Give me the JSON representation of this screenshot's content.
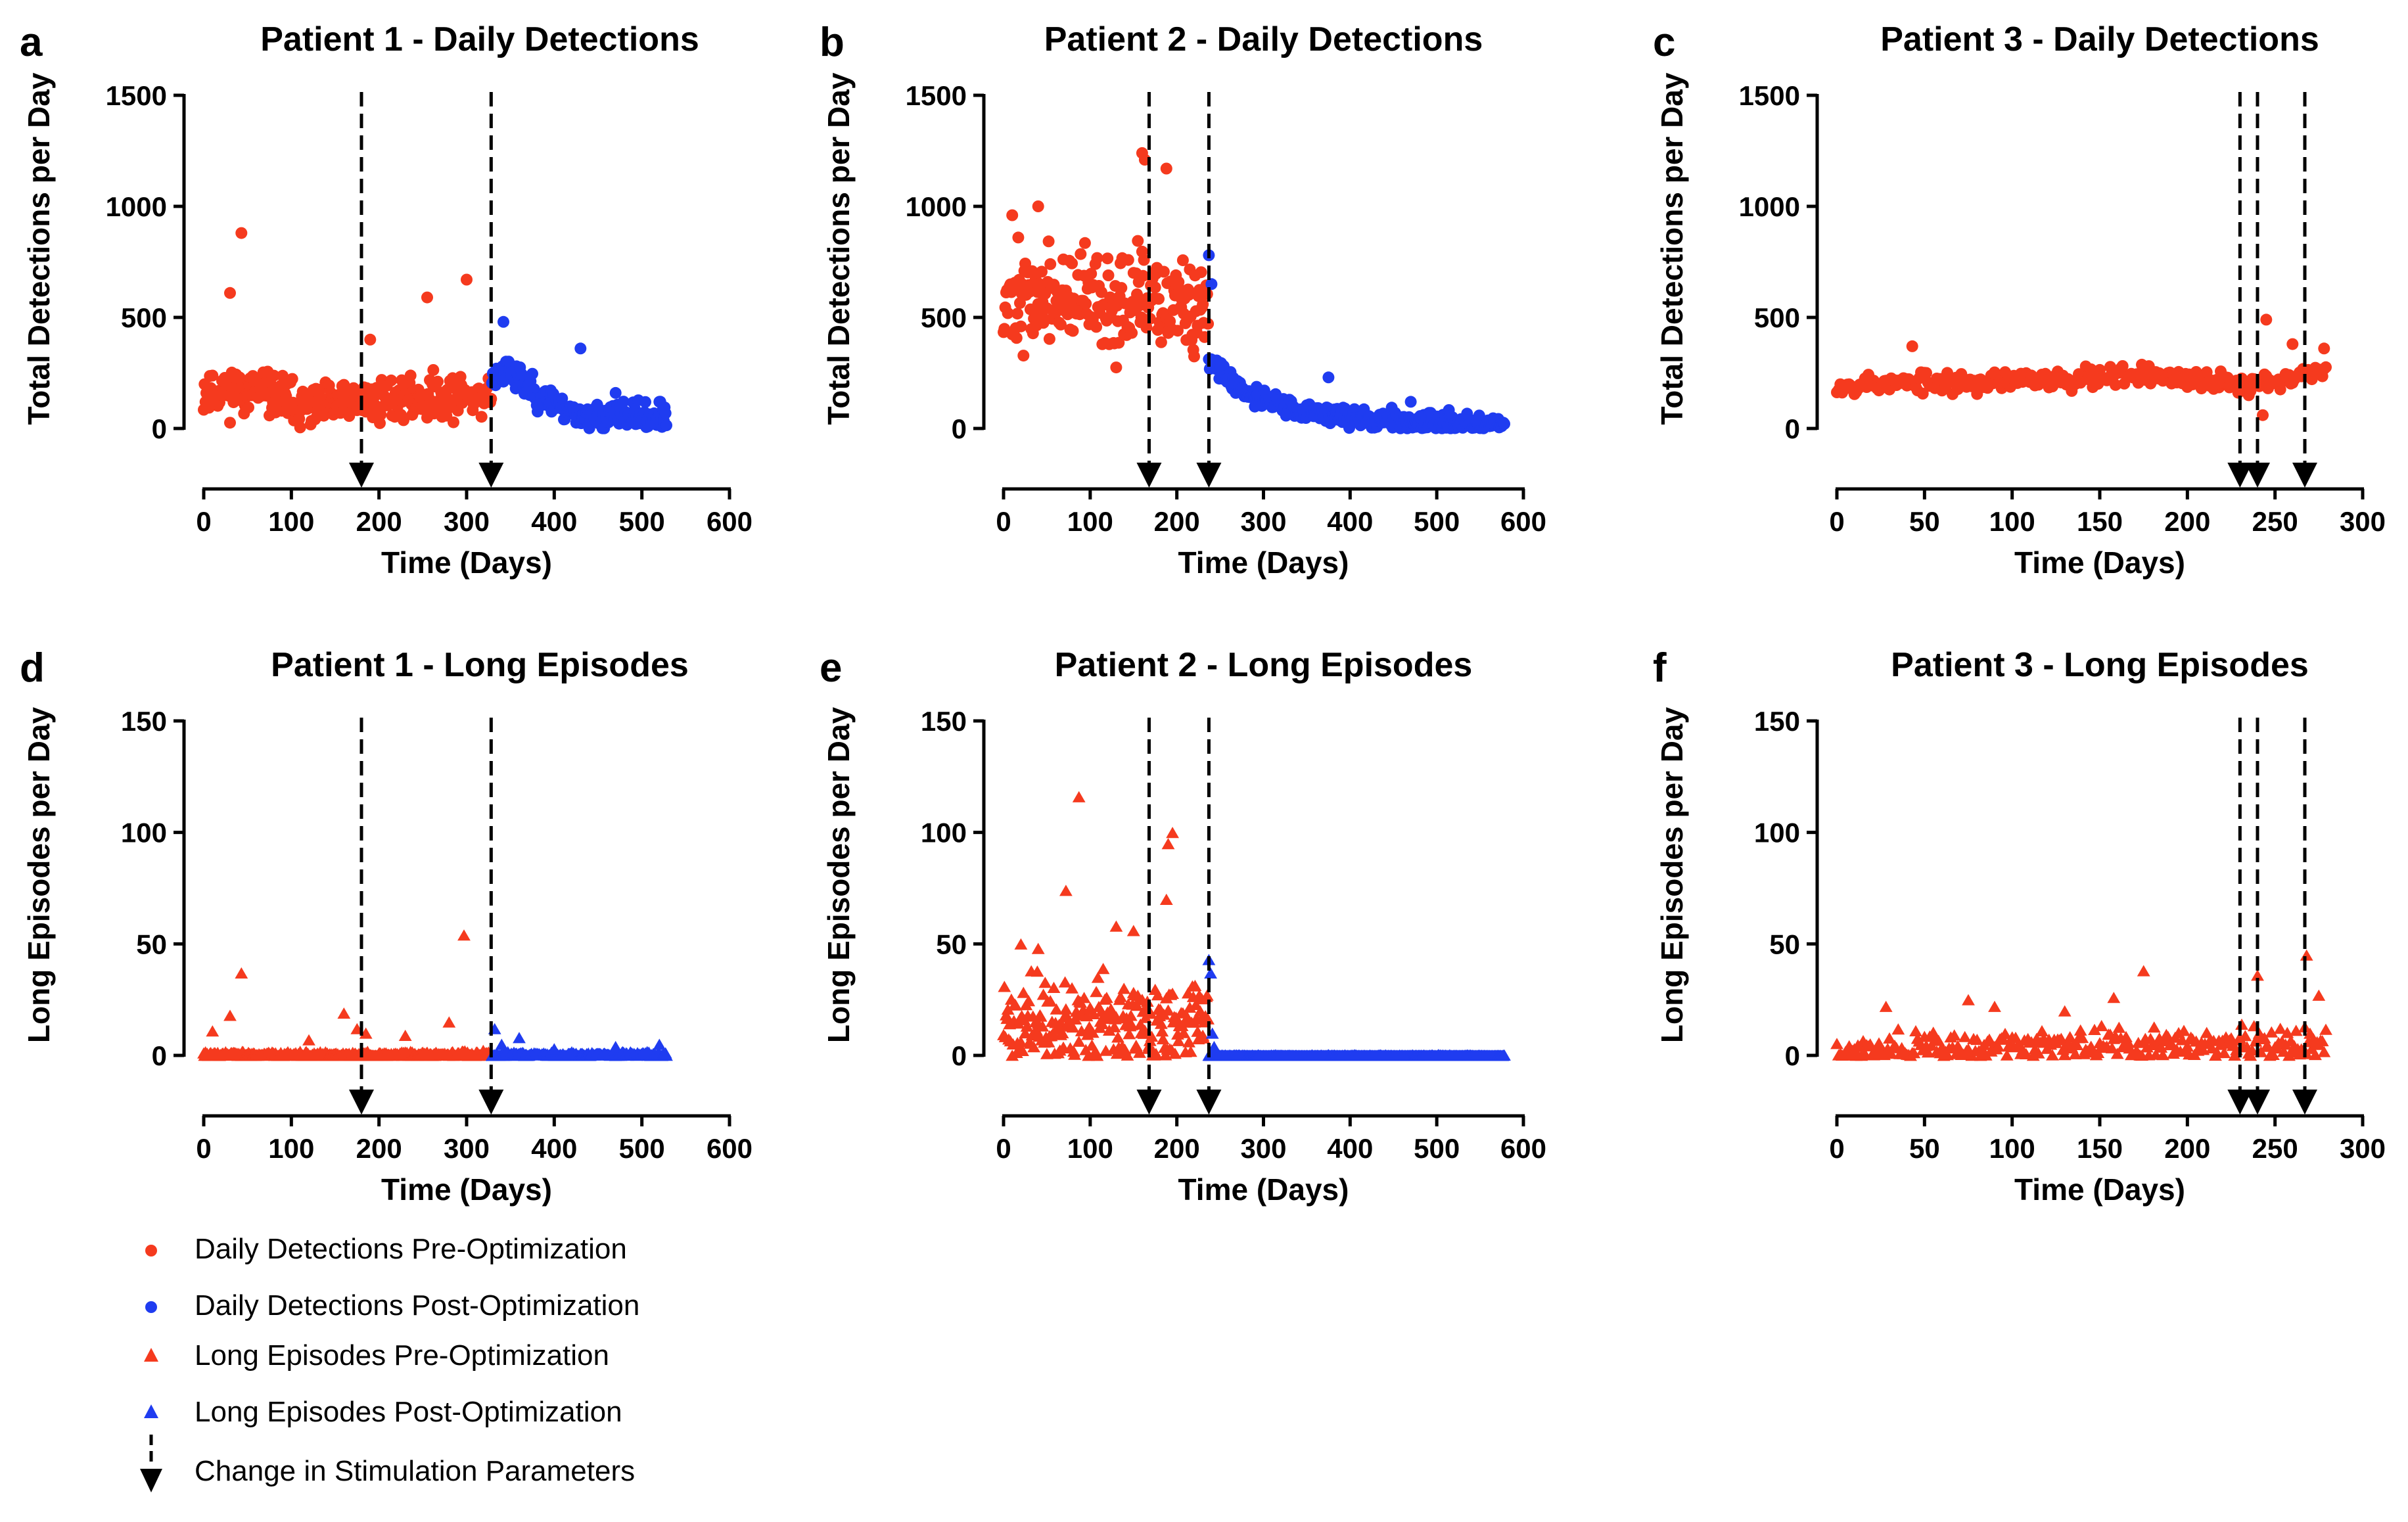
{
  "colors": {
    "pre": "#f53a1e",
    "post": "#1f3cf0",
    "axis": "#000000"
  },
  "chart_data": [
    {
      "panel": "a",
      "type": "scatter",
      "marker": "circle",
      "title": "Patient 1 - Daily Detections",
      "xlabel": "Time (Days)",
      "ylabel": "Total Detections per Day",
      "xlim": [
        0,
        600
      ],
      "ylim": [
        0,
        1500
      ],
      "xticks": [
        0,
        100,
        200,
        300,
        400,
        500,
        600
      ],
      "yticks": [
        0,
        500,
        1000,
        1500
      ],
      "change_days": [
        180,
        328
      ],
      "series": [
        {
          "name": "Daily Detections Pre-Optimization",
          "color": "pre",
          "profile": {
            "start": 0,
            "end": 328,
            "base": [
              [
                0,
                170
              ],
              [
                60,
                170
              ],
              [
                120,
                90
              ],
              [
                200,
                130
              ],
              [
                328,
                150
              ]
            ],
            "spread": 90,
            "seed": 11
          },
          "outliers": [
            [
              43,
              880
            ],
            [
              30,
              610
            ],
            [
              300,
              670
            ],
            [
              255,
              590
            ],
            [
              190,
              400
            ]
          ]
        },
        {
          "name": "Daily Detections Post-Optimization",
          "color": "post",
          "profile": {
            "start": 329,
            "end": 528,
            "base": [
              [
                329,
                220
              ],
              [
                345,
                280
              ],
              [
                380,
                150
              ],
              [
                430,
                60
              ],
              [
                528,
                50
              ]
            ],
            "spread": 55,
            "seed": 23
          },
          "outliers": [
            [
              342,
              480
            ],
            [
              430,
              360
            ],
            [
              470,
              160
            ],
            [
              520,
              120
            ]
          ]
        }
      ]
    },
    {
      "panel": "b",
      "type": "scatter",
      "marker": "circle",
      "title": "Patient 2 - Daily Detections",
      "xlabel": "Time (Days)",
      "ylabel": "Total Detections per Day",
      "xlim": [
        0,
        600
      ],
      "ylim": [
        0,
        1500
      ],
      "xticks": [
        0,
        100,
        200,
        300,
        400,
        500,
        600
      ],
      "yticks": [
        0,
        500,
        1000,
        1500
      ],
      "change_days": [
        168,
        237
      ],
      "series": [
        {
          "name": "Daily Detections Pre-Optimization",
          "color": "pre",
          "profile": {
            "start": 0,
            "end": 236,
            "base": [
              [
                0,
                600
              ],
              [
                120,
                560
              ],
              [
                200,
                560
              ],
              [
                236,
                480
              ]
            ],
            "spread": 200,
            "seed": 37
          },
          "outliers": [
            [
              160,
              1240
            ],
            [
              163,
              1210
            ],
            [
              188,
              1170
            ],
            [
              10,
              960
            ],
            [
              40,
              1000
            ]
          ]
        },
        {
          "name": "Daily Detections Post-Optimization",
          "color": "post",
          "profile": {
            "start": 237,
            "end": 578,
            "base": [
              [
                237,
                300
              ],
              [
                280,
                160
              ],
              [
                340,
                80
              ],
              [
                420,
                40
              ],
              [
                578,
                15
              ]
            ],
            "spread": 40,
            "seed": 41
          },
          "outliers": [
            [
              237,
              780
            ],
            [
              240,
              650
            ],
            [
              375,
              230
            ],
            [
              470,
              120
            ]
          ]
        }
      ]
    },
    {
      "panel": "c",
      "type": "scatter",
      "marker": "circle",
      "title": "Patient 3 - Daily Detections",
      "xlabel": "Time (Days)",
      "ylabel": "Total Detections per Day",
      "xlim": [
        0,
        300
      ],
      "ylim": [
        0,
        1500
      ],
      "xticks": [
        0,
        50,
        100,
        150,
        200,
        250,
        300
      ],
      "yticks": [
        0,
        500,
        1000,
        1500
      ],
      "change_days": [
        230,
        240,
        267
      ],
      "series": [
        {
          "name": "Daily Detections Pre-Optimization",
          "color": "pre",
          "profile": {
            "start": 0,
            "end": 279,
            "base": [
              [
                0,
                200
              ],
              [
                100,
                210
              ],
              [
                170,
                250
              ],
              [
                230,
                190
              ],
              [
                279,
                270
              ]
            ],
            "spread": 45,
            "seed": 53
          },
          "outliers": [
            [
              43,
              370
            ],
            [
              245,
              490
            ],
            [
              260,
              380
            ],
            [
              278,
              360
            ],
            [
              243,
              60
            ]
          ]
        }
      ]
    },
    {
      "panel": "d",
      "type": "scatter",
      "marker": "triangle",
      "title": "Patient 1 - Long Episodes",
      "xlabel": "Time (Days)",
      "ylabel": "Long Episodes per Day",
      "xlim": [
        0,
        600
      ],
      "ylim": [
        0,
        150
      ],
      "xticks": [
        0,
        100,
        200,
        300,
        400,
        500,
        600
      ],
      "yticks": [
        0,
        50,
        100,
        150
      ],
      "change_days": [
        180,
        328
      ],
      "series": [
        {
          "name": "Long Episodes Pre-Optimization",
          "color": "pre",
          "profile": {
            "start": 0,
            "end": 328,
            "base": [
              [
                0,
                0.5
              ],
              [
                328,
                0.5
              ]
            ],
            "spread": 1.2,
            "seed": 61
          },
          "outliers": [
            [
              297,
              54
            ],
            [
              43,
              37
            ],
            [
              160,
              19
            ],
            [
              30,
              18
            ],
            [
              10,
              11
            ],
            [
              120,
              7
            ],
            [
              230,
              9
            ],
            [
              280,
              15
            ],
            [
              175,
              12
            ],
            [
              185,
              10
            ]
          ]
        },
        {
          "name": "Long Episodes Post-Optimization",
          "color": "post",
          "profile": {
            "start": 329,
            "end": 528,
            "base": [
              [
                329,
                0.5
              ],
              [
                528,
                0.5
              ]
            ],
            "spread": 1.0,
            "seed": 67
          },
          "outliers": [
            [
              332,
              12
            ],
            [
              360,
              8
            ],
            [
              340,
              5
            ],
            [
              470,
              4
            ],
            [
              520,
              5
            ],
            [
              400,
              3
            ]
          ]
        }
      ]
    },
    {
      "panel": "e",
      "type": "scatter",
      "marker": "triangle",
      "title": "Patient 2 - Long Episodes",
      "xlabel": "Time (Days)",
      "ylabel": "Long Episodes per Day",
      "xlim": [
        0,
        600
      ],
      "ylim": [
        0,
        150
      ],
      "xticks": [
        0,
        100,
        200,
        300,
        400,
        500,
        600
      ],
      "yticks": [
        0,
        50,
        100,
        150
      ],
      "change_days": [
        168,
        237
      ],
      "series": [
        {
          "name": "Long Episodes Pre-Optimization",
          "color": "pre",
          "profile": {
            "start": 0,
            "end": 236,
            "base": [
              [
                0,
                14
              ],
              [
                236,
                14
              ]
            ],
            "spread": 18,
            "seed": 71
          },
          "outliers": [
            [
              87,
              116
            ],
            [
              195,
              100
            ],
            [
              190,
              95
            ],
            [
              72,
              74
            ],
            [
              188,
              70
            ],
            [
              130,
              58
            ],
            [
              150,
              56
            ],
            [
              20,
              50
            ],
            [
              40,
              48
            ]
          ]
        },
        {
          "name": "Long Episodes Post-Optimization",
          "color": "post",
          "profile": {
            "start": 237,
            "end": 578,
            "base": [
              [
                237,
                0
              ],
              [
                578,
                0
              ]
            ],
            "spread": 0.3,
            "seed": 73
          },
          "outliers": [
            [
              237,
              43
            ],
            [
              239,
              37
            ],
            [
              241,
              10
            ],
            [
              243,
              4
            ]
          ]
        }
      ]
    },
    {
      "panel": "f",
      "type": "scatter",
      "marker": "triangle",
      "title": "Patient 3 - Long Episodes",
      "xlabel": "Time (Days)",
      "ylabel": "Long Episodes per Day",
      "xlim": [
        0,
        300
      ],
      "ylim": [
        0,
        150
      ],
      "xticks": [
        0,
        50,
        100,
        150,
        200,
        250,
        300
      ],
      "yticks": [
        0,
        50,
        100,
        150
      ],
      "change_days": [
        230,
        240,
        267
      ],
      "series": [
        {
          "name": "Long Episodes Pre-Optimization",
          "color": "pre",
          "profile": {
            "start": 0,
            "end": 279,
            "base": [
              [
                0,
                4
              ],
              [
                279,
                5
              ]
            ],
            "spread": 7,
            "seed": 79
          },
          "outliers": [
            [
              268,
              45
            ],
            [
              240,
              36
            ],
            [
              175,
              38
            ],
            [
              275,
              27
            ],
            [
              158,
              26
            ],
            [
              75,
              25
            ],
            [
              90,
              22
            ],
            [
              28,
              22
            ],
            [
              130,
              20
            ]
          ]
        }
      ]
    }
  ],
  "legend": [
    {
      "label": "Daily Detections Pre-Optimization",
      "marker": "circle",
      "color": "pre"
    },
    {
      "label": "Daily Detections Post-Optimization",
      "marker": "circle",
      "color": "post"
    },
    {
      "label": "Long Episodes Pre-Optimization",
      "marker": "triangle",
      "color": "pre"
    },
    {
      "label": "Long Episodes Post-Optimization",
      "marker": "triangle",
      "color": "post"
    },
    {
      "label": "Change in Stimulation Parameters",
      "marker": "dashed-arrow",
      "color": "axis"
    }
  ]
}
